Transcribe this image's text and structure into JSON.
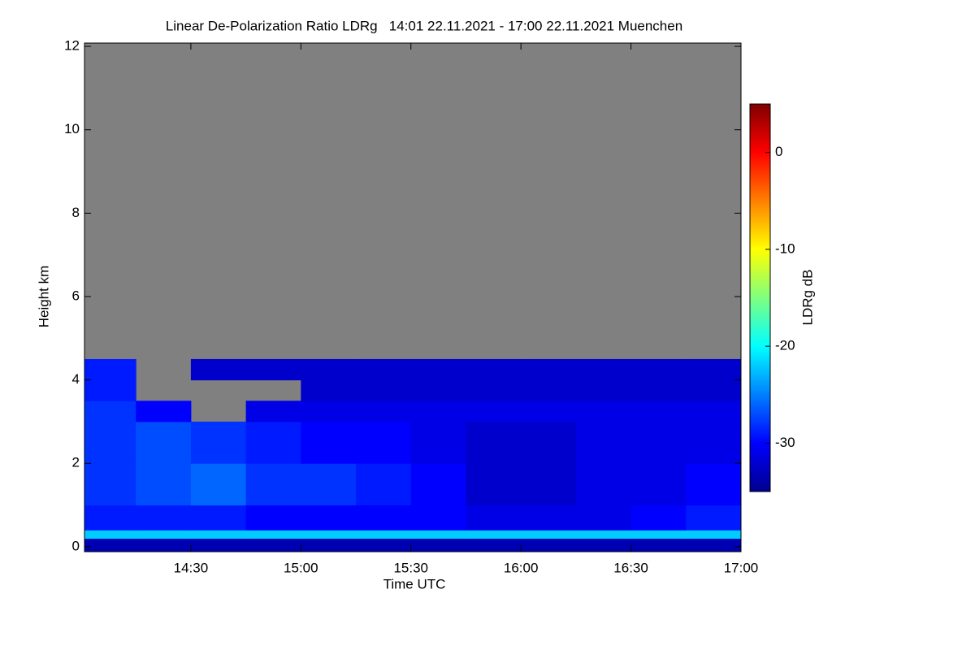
{
  "chart_data": {
    "type": "heatmap",
    "title": "Linear De-Polarization Ratio LDRg   14:01 22.11.2021 - 17:00 22.11.2021 Muenchen",
    "x_label": "Time UTC",
    "y_label": "Height km",
    "colorbar_label": "LDRg dB",
    "colormap": "jet",
    "missing_color": "#808080",
    "x_edges": [
      14.0167,
      14.25,
      14.5,
      14.75,
      15.0,
      15.25,
      15.5,
      15.75,
      16.0,
      16.25,
      16.5,
      16.75,
      17.0
    ],
    "y_edges": [
      -0.1,
      0.2,
      0.4,
      1,
      2,
      3,
      3.5,
      4,
      4.5
    ],
    "values": [
      [
        -33,
        -33,
        -33,
        -33,
        -33,
        -33,
        -33,
        -33,
        -33,
        -33,
        -33,
        -33
      ],
      [
        -22,
        -22,
        -22,
        -22,
        -22,
        -22,
        -22,
        -22,
        -22,
        -22,
        -22,
        -22
      ],
      [
        -29,
        -29,
        -29,
        -30,
        -30,
        -30,
        -30,
        -31,
        -31,
        -31,
        -30,
        -29
      ],
      [
        -28,
        -27,
        -26,
        -28,
        -28,
        -29,
        -30,
        -32,
        -32,
        -31,
        -31,
        -30
      ],
      [
        -28,
        -27,
        -28,
        -29,
        -30,
        -30,
        -31,
        -32,
        -32,
        -31,
        -31,
        -31
      ],
      [
        -28,
        -30,
        null,
        -31,
        -31,
        -31,
        -31,
        -31,
        -31,
        -31,
        -31,
        -31
      ],
      [
        -29,
        null,
        null,
        null,
        -32,
        -32,
        -32,
        -32,
        -32,
        -32,
        -32,
        -32
      ],
      [
        -29,
        null,
        -32,
        -32,
        -32,
        -32,
        -32,
        -32,
        -32,
        -32,
        -32,
        -32
      ]
    ],
    "xlim": [
      14.0167,
      17.0
    ],
    "xticks": [
      {
        "value": 14.5,
        "label": "14:30"
      },
      {
        "value": 15.0,
        "label": "15:00"
      },
      {
        "value": 15.5,
        "label": "15:30"
      },
      {
        "value": 16.0,
        "label": "16:00"
      },
      {
        "value": 16.5,
        "label": "16:30"
      },
      {
        "value": 17.0,
        "label": "17:00"
      }
    ],
    "ylim": [
      -0.12,
      12.08
    ],
    "yticks": [
      0,
      2,
      4,
      6,
      8,
      10,
      12
    ],
    "clim": [
      -35,
      5
    ],
    "cticks": [
      -30,
      -20,
      -10,
      0
    ]
  }
}
